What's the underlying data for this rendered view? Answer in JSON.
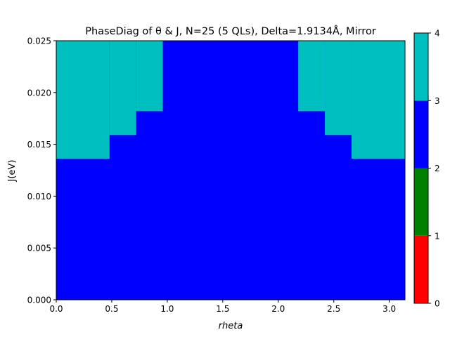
{
  "chart_data": {
    "type": "heatmap",
    "title": "PhaseDiag of θ & J, N=25 (5 QLs), Delta=1.9134Å, Mirror",
    "xlabel": "rheta",
    "ylabel": "J(eV)",
    "xlim": [
      0,
      3.1416
    ],
    "ylim": [
      0,
      0.025
    ],
    "x_ticks": [
      0.0,
      0.5,
      1.0,
      1.5,
      2.0,
      2.5,
      3.0
    ],
    "x_tick_labels": [
      "0.0",
      "0.5",
      "1.0",
      "1.5",
      "2.0",
      "2.5",
      "3.0"
    ],
    "y_ticks": [
      0.0,
      0.005,
      0.01,
      0.015,
      0.02,
      0.025
    ],
    "y_tick_labels": [
      "0.000",
      "0.005",
      "0.010",
      "0.015",
      "0.020",
      "0.025"
    ],
    "background_phase": 2,
    "phase_regions": [
      {
        "phase": 3,
        "theta_range": [
          0.0,
          0.48
        ],
        "J_range": [
          0.0136,
          0.025
        ]
      },
      {
        "phase": 3,
        "theta_range": [
          0.48,
          0.72
        ],
        "J_range": [
          0.0159,
          0.025
        ]
      },
      {
        "phase": 3,
        "theta_range": [
          0.72,
          0.96
        ],
        "J_range": [
          0.0182,
          0.025
        ]
      },
      {
        "phase": 3,
        "theta_range": [
          2.18,
          2.42
        ],
        "J_range": [
          0.0182,
          0.025
        ]
      },
      {
        "phase": 3,
        "theta_range": [
          2.42,
          2.66
        ],
        "J_range": [
          0.0159,
          0.025
        ]
      },
      {
        "phase": 3,
        "theta_range": [
          2.66,
          3.1416
        ],
        "J_range": [
          0.0136,
          0.025
        ]
      }
    ],
    "colorbar": {
      "range": [
        0,
        4
      ],
      "ticks": [
        0,
        1,
        2,
        3,
        4
      ],
      "tick_labels": [
        "0",
        "1",
        "2",
        "3",
        "4"
      ],
      "colors": [
        {
          "from": 0,
          "to": 1,
          "color": "#ff0000"
        },
        {
          "from": 1,
          "to": 2,
          "color": "#008000"
        },
        {
          "from": 2,
          "to": 3,
          "color": "#0000ff"
        },
        {
          "from": 3,
          "to": 4,
          "color": "#00bfbf"
        }
      ]
    },
    "grid": false
  }
}
